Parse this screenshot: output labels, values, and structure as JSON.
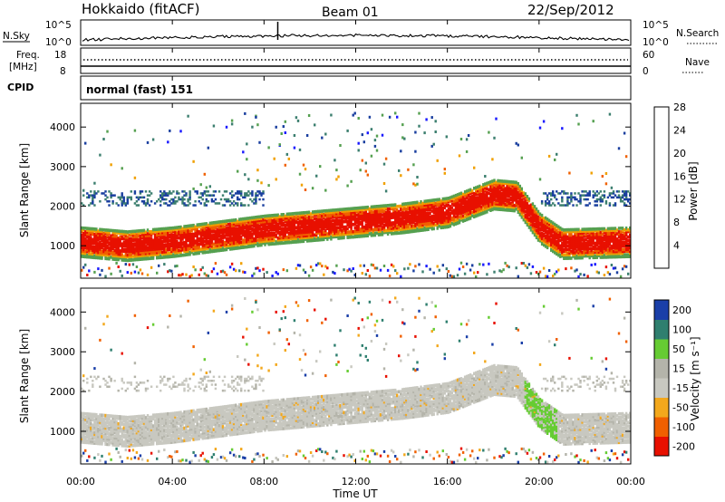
{
  "header": {
    "station": "Hokkaido (fitACF)",
    "beam": "Beam 01",
    "date": "22/Sep/2012"
  },
  "strip_labels": {
    "nsky": "N.Sky",
    "nsearch": "N.Search",
    "freq_line1": "Freq.",
    "freq_line2": "[MHz]",
    "nave": "Nave",
    "cpid": "CPID",
    "cpid_value": "normal (fast) 151"
  },
  "strip_ticks": {
    "noise_left_top": "10^5",
    "noise_left_bottom": "10^0",
    "noise_right_top": "10^5",
    "noise_right_bottom": "10^0",
    "freq_left_top": "18",
    "freq_left_bottom": "8",
    "nave_right_top": "60",
    "nave_right_bottom": "0"
  },
  "colors": {
    "power": [
      "#1a1aff",
      "#1a3f9f",
      "#3c7f6f",
      "#55a050",
      "#f0a000",
      "#f06000",
      "#e81000"
    ],
    "velocity": [
      "#e81000",
      "#f06000",
      "#f3a81c",
      "#c8c8c0",
      "#b4b4aa",
      "#66cc33",
      "#2f7f6f",
      "#1a3fa8"
    ]
  },
  "chart_data": [
    {
      "type": "heatmap",
      "title": "",
      "xlabel": "Time UT",
      "ylabel": "Slant Range [km]",
      "x_ticks": [
        "00:00",
        "04:00",
        "08:00",
        "12:00",
        "16:00",
        "20:00",
        "00:00"
      ],
      "y_ticks": [
        "1000",
        "2000",
        "3000",
        "4000"
      ],
      "ylim": [
        180,
        4600
      ],
      "colorbar": {
        "label": "Power [dB]",
        "ticks": [
          "4",
          "8",
          "12",
          "16",
          "20",
          "24",
          "28"
        ]
      },
      "main_band_center_km": [
        {
          "hour": 0,
          "km": 1150
        },
        {
          "hour": 2,
          "km": 1050
        },
        {
          "hour": 4,
          "km": 1150
        },
        {
          "hour": 6,
          "km": 1300
        },
        {
          "hour": 8,
          "km": 1450
        },
        {
          "hour": 10,
          "km": 1550
        },
        {
          "hour": 12,
          "km": 1650
        },
        {
          "hour": 14,
          "km": 1750
        },
        {
          "hour": 16,
          "km": 1900
        },
        {
          "hour": 18,
          "km": 2350
        },
        {
          "hour": 19,
          "km": 2300
        },
        {
          "hour": 20,
          "km": 1500
        },
        {
          "hour": 21,
          "km": 1100
        },
        {
          "hour": 24,
          "km": 1150
        }
      ]
    },
    {
      "type": "heatmap",
      "title": "",
      "xlabel": "Time UT",
      "ylabel": "Slant Range [km]",
      "x_ticks": [
        "00:00",
        "04:00",
        "08:00",
        "12:00",
        "16:00",
        "20:00",
        "00:00"
      ],
      "y_ticks": [
        "1000",
        "2000",
        "3000",
        "4000"
      ],
      "ylim": [
        180,
        4600
      ],
      "colorbar": {
        "label": "Velocity [m s⁻¹]",
        "ticks": [
          "-200",
          "-100",
          "-50",
          "-15",
          "15",
          "50",
          "100",
          "200"
        ]
      }
    }
  ]
}
